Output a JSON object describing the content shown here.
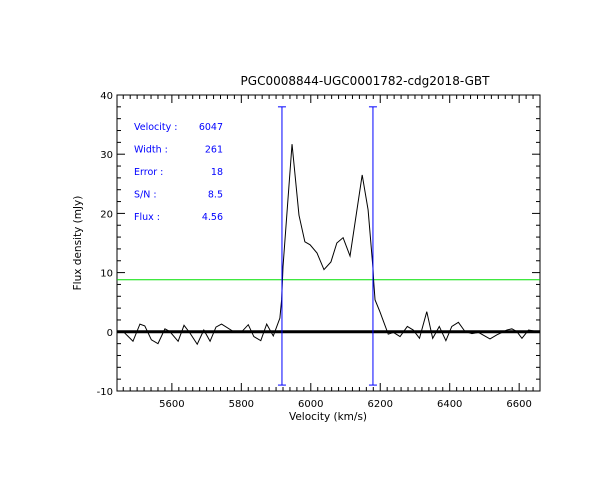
{
  "chart_data": {
    "type": "line",
    "title": "PGC0008844-UGC0001782-cdg2018-GBT",
    "xlabel": "Velocity (km/s)",
    "ylabel": "Flux density (mJy)",
    "xlim": [
      5442,
      6660
    ],
    "ylim": [
      -10,
      40
    ],
    "xticks": [
      5600,
      5800,
      6000,
      6200,
      6400,
      6600
    ],
    "yticks": [
      -10,
      0,
      10,
      20,
      30,
      40
    ],
    "grid": false,
    "series": [
      {
        "name": "spectrum",
        "color": "#000000",
        "x": [
          5441,
          5460,
          5488,
          5508,
          5522,
          5541,
          5560,
          5580,
          5594,
          5618,
          5635,
          5652,
          5673,
          5692,
          5710,
          5727,
          5743,
          5777,
          5801,
          5820,
          5836,
          5856,
          5873,
          5892,
          5911,
          5916,
          5920,
          5946,
          5966,
          5983,
          5998,
          6018,
          6038,
          6058,
          6075,
          6093,
          6113,
          6148,
          6165,
          6179,
          6181,
          6185,
          6199,
          6223,
          6238,
          6257,
          6278,
          6295,
          6313,
          6334,
          6351,
          6370,
          6389,
          6406,
          6425,
          6444,
          6464,
          6483,
          6516,
          6536,
          6565,
          6579,
          6593,
          6608,
          6627,
          6651
        ],
        "y": [
          -0.1,
          0.05,
          -1.6,
          1.3,
          1.0,
          -1.35,
          -2.0,
          0.5,
          0.05,
          -1.6,
          1.1,
          -0.2,
          -2.1,
          0.3,
          -1.6,
          0.8,
          1.3,
          0.05,
          0,
          1.2,
          -0.8,
          -1.5,
          1.3,
          -0.7,
          2.3,
          5.4,
          11.0,
          31.7,
          19.7,
          15.2,
          14.7,
          13.3,
          10.5,
          11.8,
          15.0,
          15.9,
          12.8,
          26.5,
          20.6,
          10.8,
          8.6,
          5.4,
          3.4,
          -0.4,
          -0.1,
          -0.8,
          0.9,
          0.3,
          -1.1,
          3.4,
          -1.1,
          0.9,
          -1.5,
          0.9,
          1.6,
          0.05,
          -0.3,
          -0.1,
          -1.2,
          -0.5,
          0.3,
          0.5,
          0.05,
          -1.1,
          0.3,
          0.05
        ]
      }
    ],
    "baseline": {
      "y": 0,
      "color": "#000000"
    },
    "threshold": {
      "y": 8.8,
      "color": "#00e000"
    },
    "markers": {
      "x": [
        5917,
        6179
      ],
      "y_range": [
        -9,
        38
      ],
      "color": "#0000ff"
    },
    "annotations": [
      {
        "label": "Velocity :",
        "value": "6047"
      },
      {
        "label": "Width :",
        "value": "261"
      },
      {
        "label": "Error :",
        "value": "18"
      },
      {
        "label": "S/N :",
        "value": "8.5"
      },
      {
        "label": "Flux :",
        "value": "4.56"
      }
    ],
    "annotation_color": "#0000ff"
  }
}
